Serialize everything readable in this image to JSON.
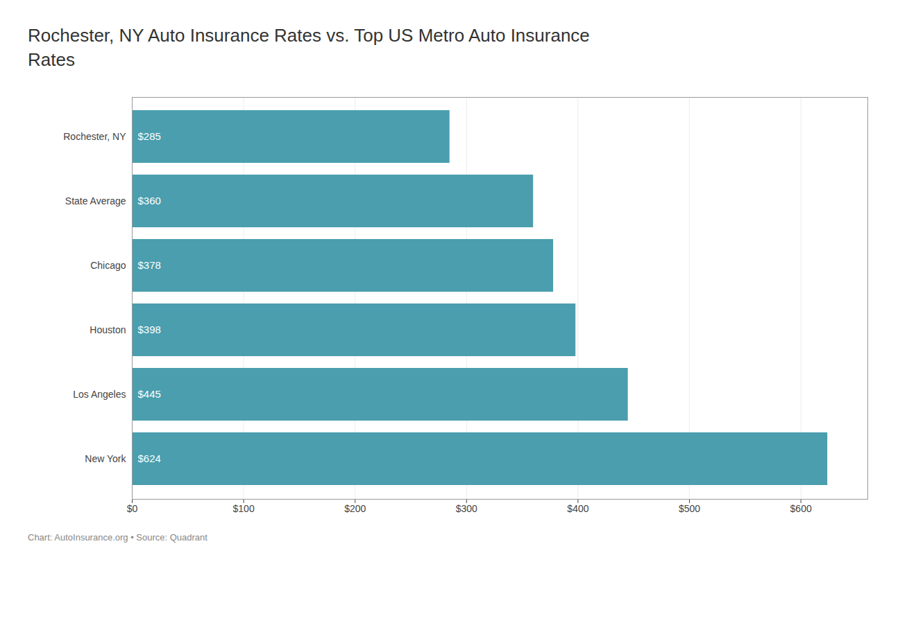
{
  "chart_data": {
    "type": "bar",
    "orientation": "horizontal",
    "title": "Rochester, NY Auto Insurance Rates vs. Top US Metro Auto Insurance\nRates",
    "footnote": "Chart: AutoInsurance.org • Source: Quadrant",
    "categories": [
      "Rochester, NY",
      "State Average",
      "Chicago",
      "Houston",
      "Los Angeles",
      "New York"
    ],
    "values": [
      285,
      360,
      378,
      398,
      445,
      624
    ],
    "value_labels": [
      "$285",
      "$360",
      "$378",
      "$398",
      "$445",
      "$624"
    ],
    "data_labels": true,
    "color": "#4a9eae",
    "xlim": [
      0,
      660
    ],
    "xticks": [
      {
        "value": 0,
        "label": "$0"
      },
      {
        "value": 100,
        "label": "$100"
      },
      {
        "value": 200,
        "label": "$200"
      },
      {
        "value": 300,
        "label": "$300"
      },
      {
        "value": 400,
        "label": "$400"
      },
      {
        "value": 500,
        "label": "$500"
      },
      {
        "value": 600,
        "label": "$600"
      }
    ],
    "grid": true
  }
}
